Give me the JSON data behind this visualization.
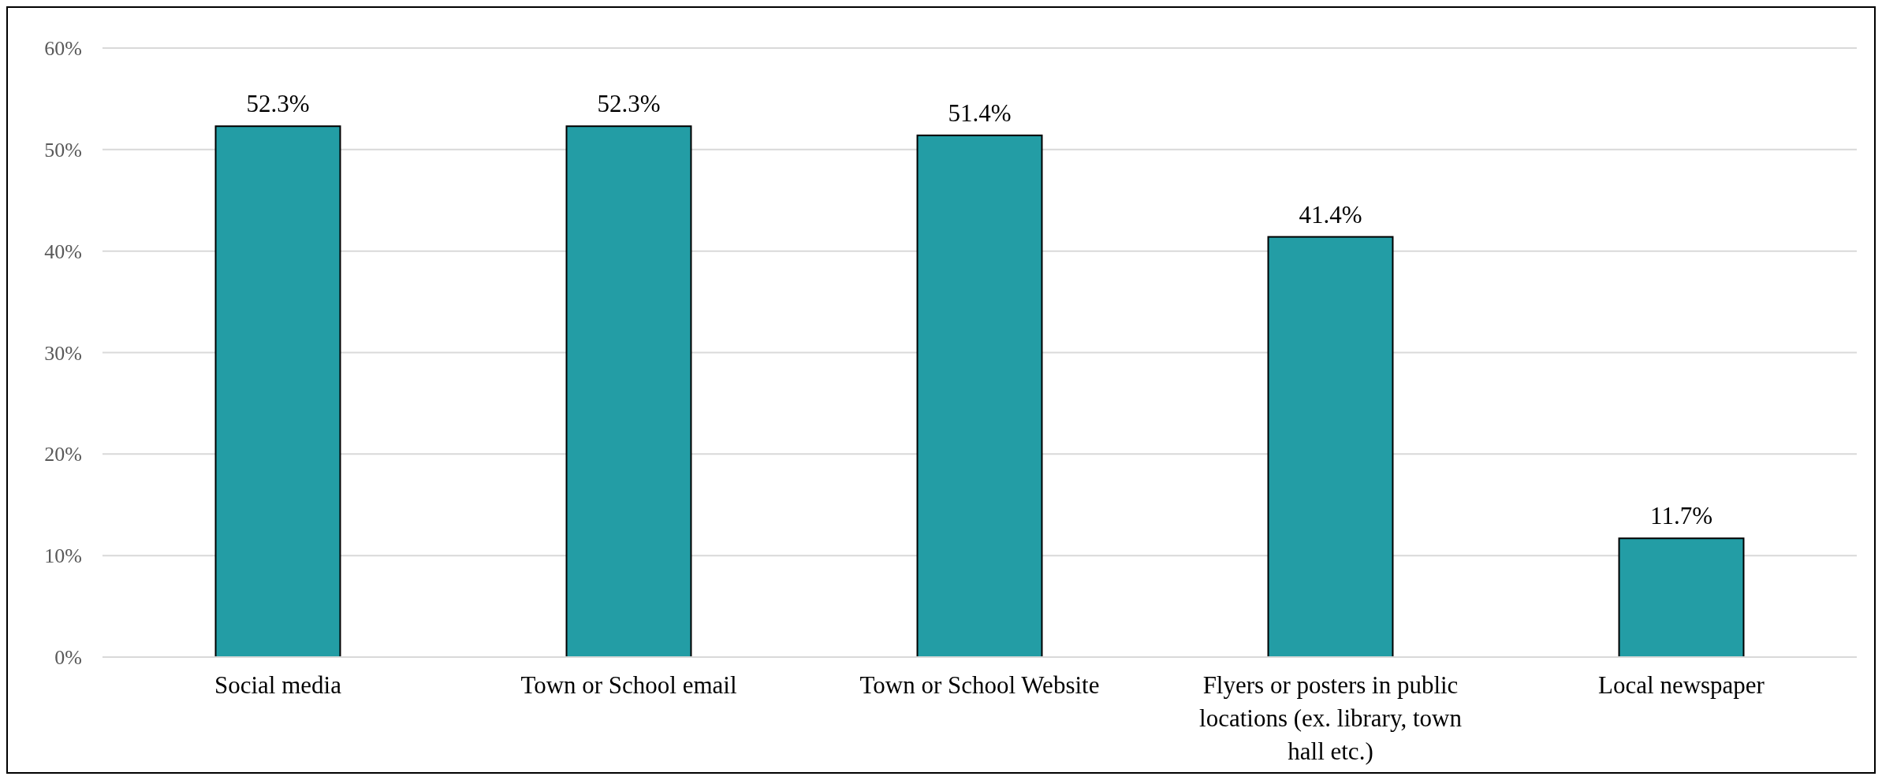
{
  "chart_data": {
    "type": "bar",
    "categories": [
      "Social media",
      "Town or School email",
      "Town or School Website",
      "Flyers or posters in public locations (ex. library, town hall etc.)",
      "Local newspaper"
    ],
    "values": [
      52.3,
      52.3,
      51.4,
      41.4,
      11.7
    ],
    "value_labels": [
      "52.3%",
      "52.3%",
      "51.4%",
      "41.4%",
      "11.7%"
    ],
    "color": "#239da5",
    "ylim": [
      0,
      60
    ],
    "yticks": [
      {
        "value": 0,
        "label": "0%"
      },
      {
        "value": 10,
        "label": "10%"
      },
      {
        "value": 20,
        "label": "20%"
      },
      {
        "value": 30,
        "label": "30%"
      },
      {
        "value": 40,
        "label": "40%"
      },
      {
        "value": 50,
        "label": "50%"
      },
      {
        "value": 60,
        "label": "60%"
      }
    ],
    "grid": "y"
  }
}
